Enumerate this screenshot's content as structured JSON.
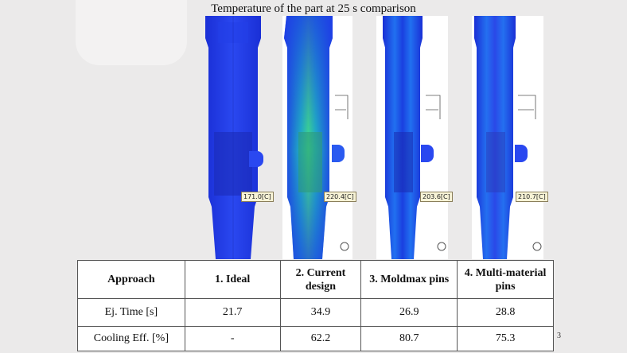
{
  "title": "Temperature of the part at 25 s comparison",
  "panels": [
    {
      "name": "ideal",
      "callout": "171.0[C]",
      "background": "#ebeaea",
      "tint": "#1e3ee6"
    },
    {
      "name": "current-design",
      "callout": "220.4[C]",
      "background": "#ffffff",
      "tint": "#1b8fe0"
    },
    {
      "name": "moldmax-pins",
      "callout": "203.6[C]",
      "background": "#ffffff",
      "tint": "#1a50e8"
    },
    {
      "name": "multi-material-pins",
      "callout": "210.7[C]",
      "background": "#ffffff",
      "tint": "#1a60e8"
    }
  ],
  "table": {
    "headers": [
      "Approach",
      "1. Ideal",
      "2. Current design",
      "3. Moldmax pins",
      "4. Multi-material pins"
    ],
    "rows": [
      {
        "label": "Ej. Time [s]",
        "values": [
          "21.7",
          "34.9",
          "26.9",
          "28.8"
        ]
      },
      {
        "label": "Cooling Eff. [%]",
        "values": [
          "-",
          "62.2",
          "80.7",
          "75.3"
        ]
      }
    ]
  },
  "edge_mark": "3"
}
